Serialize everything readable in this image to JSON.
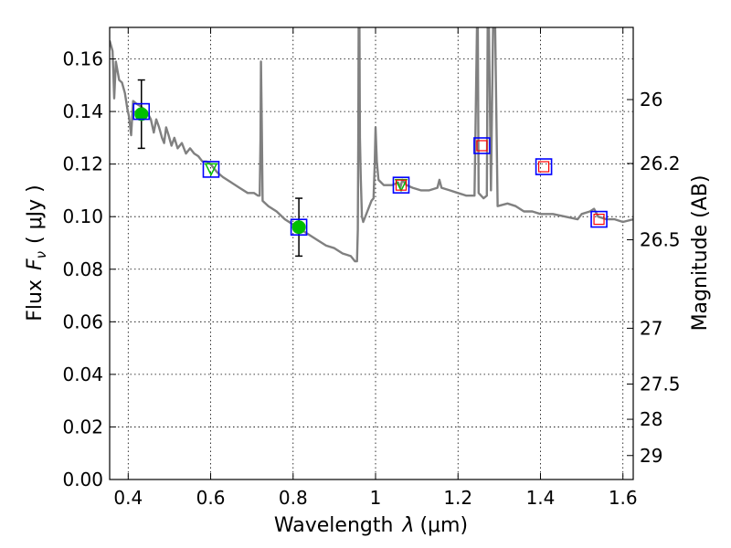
{
  "chart_data": {
    "type": "scatter",
    "x_axis": {
      "label_prefix": "Wavelength",
      "label_var": "λ",
      "label_unit": "(μm)",
      "range": [
        0.355,
        1.625
      ],
      "ticks": [
        {
          "v": 0.4,
          "label": "0.4"
        },
        {
          "v": 0.6,
          "label": "0.6"
        },
        {
          "v": 0.8,
          "label": "0.8"
        },
        {
          "v": 1.0,
          "label": "1"
        },
        {
          "v": 1.2,
          "label": "1.2"
        },
        {
          "v": 1.4,
          "label": "1.4"
        },
        {
          "v": 1.6,
          "label": "1.6"
        }
      ]
    },
    "y_axis": {
      "label_prefix": "Flux",
      "label_var": "F",
      "label_sub": "ν",
      "label_unit": "( μJy )",
      "range": [
        0.0,
        0.172
      ],
      "ticks": [
        {
          "v": 0.0,
          "label": "0.00"
        },
        {
          "v": 0.02,
          "label": "0.02"
        },
        {
          "v": 0.04,
          "label": "0.04"
        },
        {
          "v": 0.06,
          "label": "0.06"
        },
        {
          "v": 0.08,
          "label": "0.08"
        },
        {
          "v": 0.1,
          "label": "0.10"
        },
        {
          "v": 0.12,
          "label": "0.12"
        },
        {
          "v": 0.14,
          "label": "0.14"
        },
        {
          "v": 0.16,
          "label": "0.16"
        }
      ]
    },
    "y2_axis": {
      "label": "Magnitude (AB)",
      "ticks": [
        {
          "mag": 26,
          "label": "26"
        },
        {
          "mag": 26.2,
          "label": "26.2"
        },
        {
          "mag": 26.5,
          "label": "26.5"
        },
        {
          "mag": 27,
          "label": "27"
        },
        {
          "mag": 27.5,
          "label": "27.5"
        },
        {
          "mag": 28,
          "label": "28"
        },
        {
          "mag": 29,
          "label": "29"
        }
      ]
    },
    "grid": true,
    "model_spectrum": {
      "color": "#808080",
      "points": [
        [
          0.355,
          0.167
        ],
        [
          0.362,
          0.163
        ],
        [
          0.366,
          0.145
        ],
        [
          0.37,
          0.159
        ],
        [
          0.378,
          0.152
        ],
        [
          0.385,
          0.151
        ],
        [
          0.392,
          0.147
        ],
        [
          0.398,
          0.141
        ],
        [
          0.402,
          0.138
        ],
        [
          0.407,
          0.131
        ],
        [
          0.412,
          0.144
        ],
        [
          0.42,
          0.143
        ],
        [
          0.43,
          0.142
        ],
        [
          0.445,
          0.14
        ],
        [
          0.455,
          0.137
        ],
        [
          0.462,
          0.132
        ],
        [
          0.468,
          0.137
        ],
        [
          0.475,
          0.134
        ],
        [
          0.482,
          0.13
        ],
        [
          0.487,
          0.128
        ],
        [
          0.492,
          0.134
        ],
        [
          0.498,
          0.131
        ],
        [
          0.505,
          0.127
        ],
        [
          0.512,
          0.13
        ],
        [
          0.52,
          0.126
        ],
        [
          0.53,
          0.128
        ],
        [
          0.54,
          0.124
        ],
        [
          0.55,
          0.126
        ],
        [
          0.56,
          0.124
        ],
        [
          0.57,
          0.123
        ],
        [
          0.58,
          0.121
        ],
        [
          0.59,
          0.121
        ],
        [
          0.6,
          0.12
        ],
        [
          0.615,
          0.117
        ],
        [
          0.63,
          0.115
        ],
        [
          0.65,
          0.113
        ],
        [
          0.67,
          0.111
        ],
        [
          0.69,
          0.109
        ],
        [
          0.705,
          0.109
        ],
        [
          0.715,
          0.108
        ],
        [
          0.719,
          0.108
        ],
        [
          0.721,
          0.13
        ],
        [
          0.722,
          0.159
        ],
        [
          0.724,
          0.135
        ],
        [
          0.726,
          0.106
        ],
        [
          0.74,
          0.104
        ],
        [
          0.76,
          0.102
        ],
        [
          0.78,
          0.099
        ],
        [
          0.8,
          0.097
        ],
        [
          0.82,
          0.095
        ],
        [
          0.84,
          0.093
        ],
        [
          0.86,
          0.091
        ],
        [
          0.88,
          0.089
        ],
        [
          0.9,
          0.088
        ],
        [
          0.92,
          0.086
        ],
        [
          0.94,
          0.085
        ],
        [
          0.95,
          0.083
        ],
        [
          0.955,
          0.083
        ],
        [
          0.957,
          0.095
        ],
        [
          0.958,
          0.13
        ],
        [
          0.959,
          0.172
        ],
        [
          0.961,
          0.172
        ],
        [
          0.962,
          0.13
        ],
        [
          0.964,
          0.115
        ],
        [
          0.967,
          0.1
        ],
        [
          0.97,
          0.098
        ],
        [
          0.98,
          0.102
        ],
        [
          0.99,
          0.106
        ],
        [
          0.995,
          0.107
        ],
        [
          0.998,
          0.12
        ],
        [
          1.0,
          0.134
        ],
        [
          1.003,
          0.121
        ],
        [
          1.007,
          0.114
        ],
        [
          1.02,
          0.112
        ],
        [
          1.04,
          0.112
        ],
        [
          1.055,
          0.113
        ],
        [
          1.06,
          0.111
        ],
        [
          1.065,
          0.114
        ],
        [
          1.075,
          0.112
        ],
        [
          1.09,
          0.111
        ],
        [
          1.11,
          0.11
        ],
        [
          1.13,
          0.11
        ],
        [
          1.15,
          0.111
        ],
        [
          1.155,
          0.114
        ],
        [
          1.16,
          0.111
        ],
        [
          1.18,
          0.11
        ],
        [
          1.2,
          0.109
        ],
        [
          1.22,
          0.108
        ],
        [
          1.24,
          0.108
        ],
        [
          1.244,
          0.15
        ],
        [
          1.246,
          0.172
        ],
        [
          1.248,
          0.172
        ],
        [
          1.25,
          0.109
        ],
        [
          1.262,
          0.107
        ],
        [
          1.27,
          0.108
        ],
        [
          1.272,
          0.172
        ],
        [
          1.275,
          0.172
        ],
        [
          1.28,
          0.11
        ],
        [
          1.285,
          0.172
        ],
        [
          1.29,
          0.172
        ],
        [
          1.296,
          0.104
        ],
        [
          1.32,
          0.105
        ],
        [
          1.34,
          0.104
        ],
        [
          1.36,
          0.102
        ],
        [
          1.38,
          0.102
        ],
        [
          1.4,
          0.101
        ],
        [
          1.43,
          0.101
        ],
        [
          1.46,
          0.1
        ],
        [
          1.49,
          0.099
        ],
        [
          1.5,
          0.101
        ],
        [
          1.52,
          0.102
        ],
        [
          1.53,
          0.103
        ],
        [
          1.54,
          0.1
        ],
        [
          1.56,
          0.099
        ],
        [
          1.58,
          0.099
        ],
        [
          1.6,
          0.098
        ],
        [
          1.625,
          0.099
        ]
      ]
    },
    "measured_points": [
      {
        "x": 0.432,
        "y": 0.139,
        "err": 0.013
      },
      {
        "x": 0.814,
        "y": 0.096,
        "err": 0.011
      }
    ],
    "other_points": [
      {
        "x": 0.601,
        "y": 0.118,
        "marker": "triangle"
      },
      {
        "x": 1.062,
        "y": 0.112,
        "marker": "triangle"
      }
    ],
    "model_boxes": [
      {
        "x": 0.432,
        "y": 0.14,
        "inner": false
      },
      {
        "x": 0.601,
        "y": 0.118,
        "inner": false
      },
      {
        "x": 0.814,
        "y": 0.096,
        "inner": false
      },
      {
        "x": 1.062,
        "y": 0.112,
        "inner": true
      },
      {
        "x": 1.258,
        "y": 0.127,
        "inner": true
      },
      {
        "x": 1.408,
        "y": 0.119,
        "inner": true
      },
      {
        "x": 1.542,
        "y": 0.099,
        "inner": true
      }
    ],
    "colors": {
      "spectrum": "#808080",
      "measured_fill": "#00bf00",
      "box_outer": "#0000ff",
      "box_inner": "#ff0000",
      "triangle": "#00bf00",
      "errorbar": "#000000",
      "grid": "#000000"
    }
  }
}
